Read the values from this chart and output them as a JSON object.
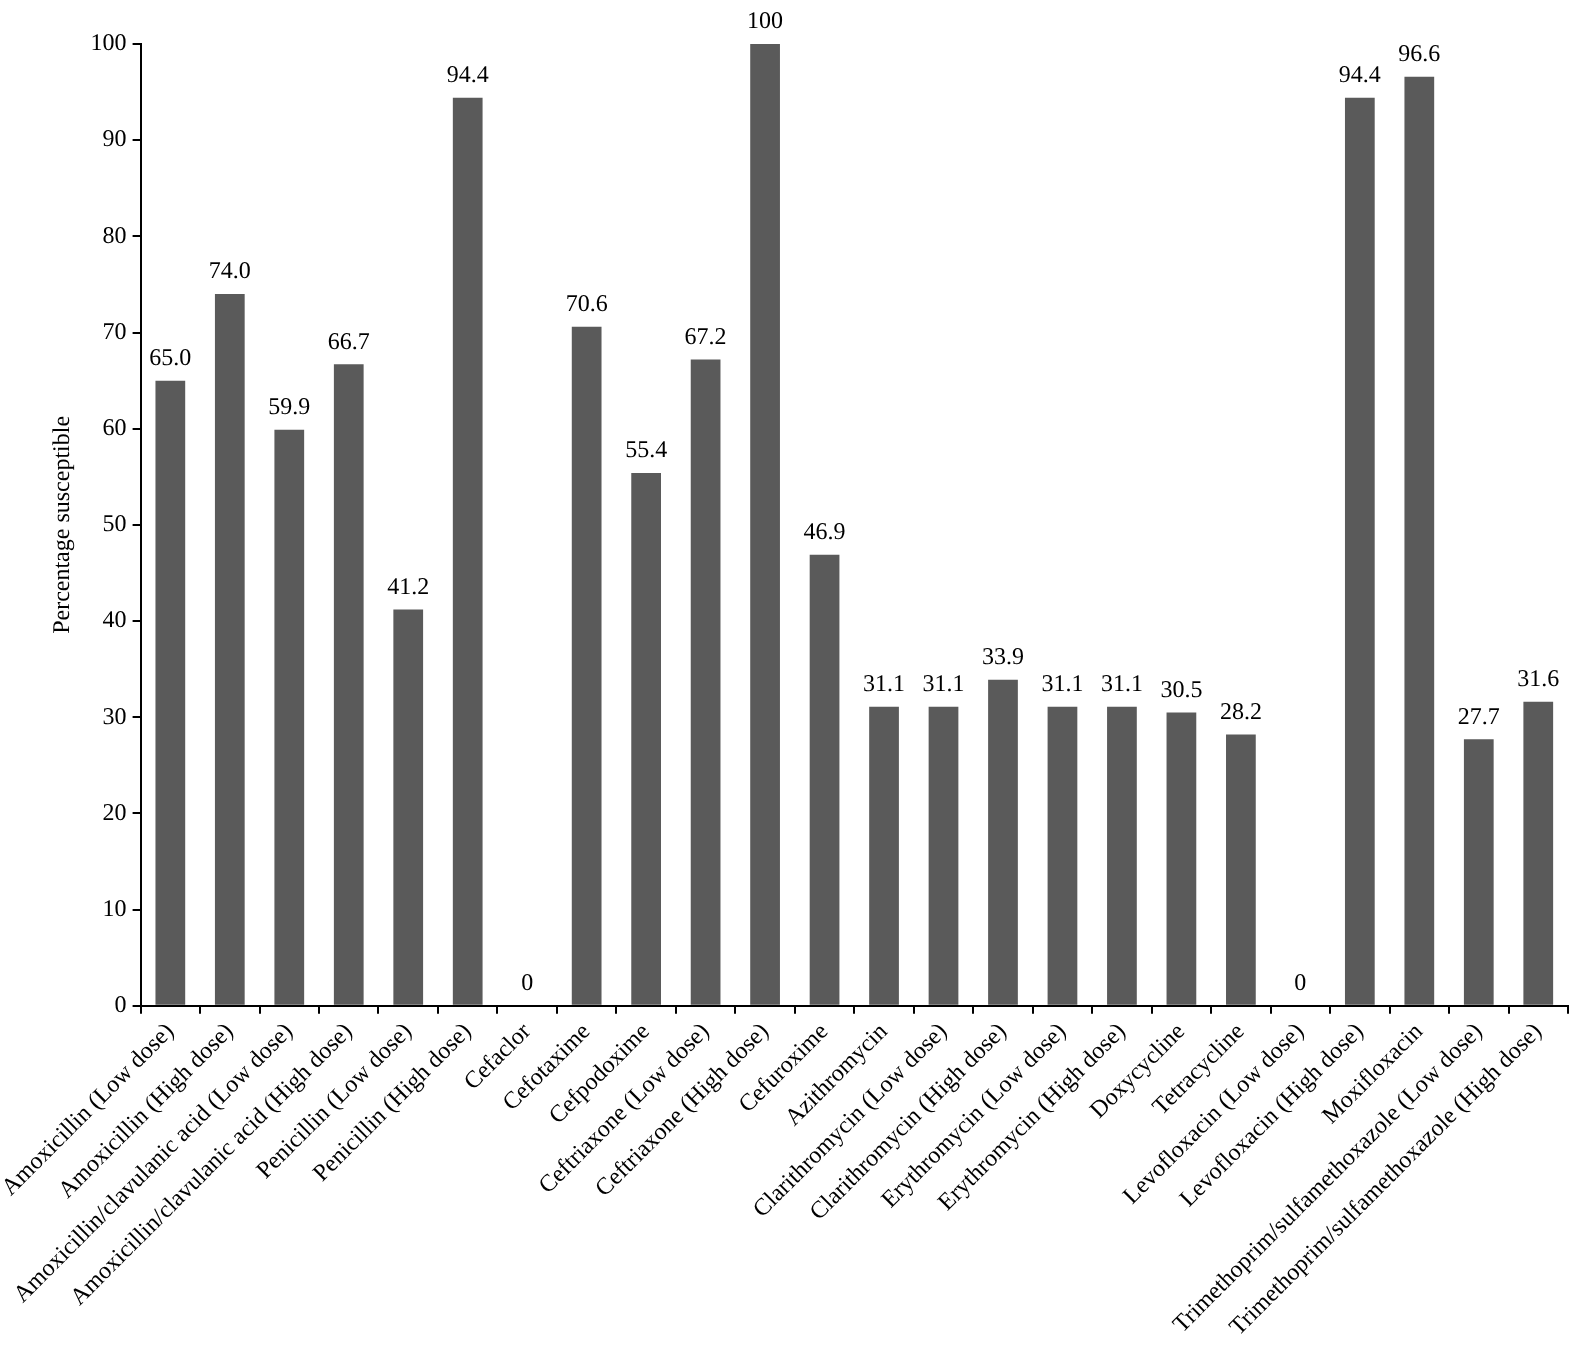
{
  "chart_data": {
    "type": "bar",
    "ylabel": "Percentage susceptible",
    "categories": [
      "Amoxicillin (Low dose)",
      "Amoxicillin (High dose)",
      "Amoxicillin/clavulanic acid (Low dose)",
      "Amoxicillin/clavulanic acid (High dose)",
      "Penicillin (Low dose)",
      "Penicillin (High dose)",
      "Cefaclor",
      "Cefotaxime",
      "Cefpodoxime",
      "Ceftriaxone (Low dose)",
      "Ceftriaxone (High dose)",
      "Cefuroxime",
      "Azithromycin",
      "Clarithromycin (Low dose)",
      "Clarithromycin (High dose)",
      "Erythromycin (Low dose)",
      "Erythromycin (High dose)",
      "Doxycycline",
      "Tetracycline",
      "Levofloxacin (Low dose)",
      "Levofloxacin (High dose)",
      "Moxifloxacin",
      "Trimethoprim/sulfamethoxazole (Low dose)",
      "Trimethoprim/sulfamethoxazole (High dose)"
    ],
    "values": [
      65.0,
      74.0,
      59.9,
      66.7,
      41.2,
      94.4,
      0,
      70.6,
      55.4,
      67.2,
      100,
      46.9,
      31.1,
      31.1,
      33.9,
      31.1,
      31.1,
      30.5,
      28.2,
      0,
      94.4,
      96.6,
      27.7,
      31.6
    ],
    "value_labels": [
      "65.0",
      "74.0",
      "59.9",
      "66.7",
      "41.2",
      "94.4",
      "0",
      "70.6",
      "55.4",
      "67.2",
      "100",
      "46.9",
      "31.1",
      "31.1",
      "33.9",
      "31.1",
      "31.1",
      "30.5",
      "28.2",
      "0",
      "94.4",
      "96.6",
      "27.7",
      "31.6"
    ],
    "color": "#5a5a5a",
    "ylim": [
      0,
      100
    ],
    "yticks": [
      0,
      10,
      20,
      30,
      40,
      50,
      60,
      70,
      80,
      90,
      100
    ],
    "grid": false,
    "legend": false
  }
}
